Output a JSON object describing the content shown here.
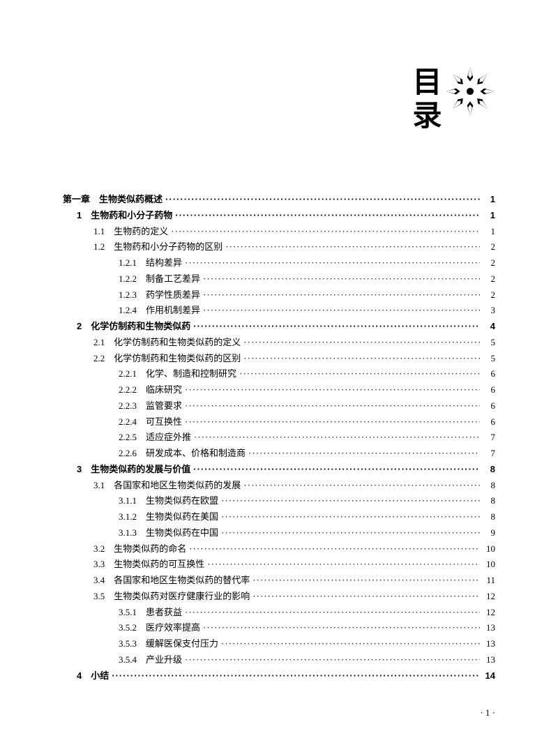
{
  "header": {
    "title": "目录"
  },
  "toc": [
    {
      "indent": 0,
      "bold": true,
      "num": "第一章",
      "title": "生物类似药概述",
      "page": "1",
      "numGap": "　"
    },
    {
      "indent": 1,
      "bold": true,
      "num": "1",
      "title": "生物药和小分子药物",
      "page": "1",
      "numGap": "　"
    },
    {
      "indent": 2,
      "bold": false,
      "num": "1.1",
      "title": "生物药的定义",
      "page": "1",
      "numGap": "　"
    },
    {
      "indent": 2,
      "bold": false,
      "num": "1.2",
      "title": "生物药和小分子药物的区别",
      "page": "2",
      "numGap": "　"
    },
    {
      "indent": 3,
      "bold": false,
      "num": "1.2.1",
      "title": "结构差异",
      "page": "2",
      "numGap": "　"
    },
    {
      "indent": 3,
      "bold": false,
      "num": "1.2.2",
      "title": "制备工艺差异",
      "page": "2",
      "numGap": "　"
    },
    {
      "indent": 3,
      "bold": false,
      "num": "1.2.3",
      "title": "药学性质差异",
      "page": "2",
      "numGap": "　"
    },
    {
      "indent": 3,
      "bold": false,
      "num": "1.2.4",
      "title": "作用机制差异",
      "page": "3",
      "numGap": "　"
    },
    {
      "indent": 1,
      "bold": true,
      "num": "2",
      "title": "化学仿制药和生物类似药",
      "page": "4",
      "numGap": "　"
    },
    {
      "indent": 2,
      "bold": false,
      "num": "2.1",
      "title": "化学仿制药和生物类似药的定义",
      "page": "5",
      "numGap": "　"
    },
    {
      "indent": 2,
      "bold": false,
      "num": "2.2",
      "title": "化学仿制药和生物类似药的区别",
      "page": "5",
      "numGap": "　"
    },
    {
      "indent": 3,
      "bold": false,
      "num": "2.2.1",
      "title": "化学、制造和控制研究",
      "page": "6",
      "numGap": "　"
    },
    {
      "indent": 3,
      "bold": false,
      "num": "2.2.2",
      "title": "临床研究",
      "page": "6",
      "numGap": "　"
    },
    {
      "indent": 3,
      "bold": false,
      "num": "2.2.3",
      "title": "监管要求",
      "page": "6",
      "numGap": "　"
    },
    {
      "indent": 3,
      "bold": false,
      "num": "2.2.4",
      "title": "可互换性",
      "page": "6",
      "numGap": "　"
    },
    {
      "indent": 3,
      "bold": false,
      "num": "2.2.5",
      "title": "适应症外推",
      "page": "7",
      "numGap": "　"
    },
    {
      "indent": 3,
      "bold": false,
      "num": "2.2.6",
      "title": "研发成本、价格和制造商",
      "page": "7",
      "numGap": "　"
    },
    {
      "indent": 1,
      "bold": true,
      "num": "3",
      "title": "生物类似药的发展与价值",
      "page": "8",
      "numGap": "　"
    },
    {
      "indent": 2,
      "bold": false,
      "num": "3.1",
      "title": "各国家和地区生物类似药的发展",
      "page": "8",
      "numGap": "　"
    },
    {
      "indent": 3,
      "bold": false,
      "num": "3.1.1",
      "title": "生物类似药在欧盟",
      "page": "8",
      "numGap": "　"
    },
    {
      "indent": 3,
      "bold": false,
      "num": "3.1.2",
      "title": "生物类似药在美国",
      "page": "8",
      "numGap": "　"
    },
    {
      "indent": 3,
      "bold": false,
      "num": "3.1.3",
      "title": "生物类似药在中国",
      "page": "9",
      "numGap": "　"
    },
    {
      "indent": 2,
      "bold": false,
      "num": "3.2",
      "title": "生物类似药的命名",
      "page": "10",
      "numGap": "　"
    },
    {
      "indent": 2,
      "bold": false,
      "num": "3.3",
      "title": "生物类似药的可互换性",
      "page": "10",
      "numGap": "　"
    },
    {
      "indent": 2,
      "bold": false,
      "num": "3.4",
      "title": "各国家和地区生物类似药的替代率",
      "page": "11",
      "numGap": "　"
    },
    {
      "indent": 2,
      "bold": false,
      "num": "3.5",
      "title": "生物类似药对医疗健康行业的影响",
      "page": "12",
      "numGap": "　"
    },
    {
      "indent": 3,
      "bold": false,
      "num": "3.5.1",
      "title": "患者获益",
      "page": "12",
      "numGap": "　"
    },
    {
      "indent": 3,
      "bold": false,
      "num": "3.5.2",
      "title": "医疗效率提高",
      "page": "13",
      "numGap": "　"
    },
    {
      "indent": 3,
      "bold": false,
      "num": "3.5.3",
      "title": "缓解医保支付压力",
      "page": "13",
      "numGap": "　"
    },
    {
      "indent": 3,
      "bold": false,
      "num": "3.5.4",
      "title": "产业升级",
      "page": "13",
      "numGap": "　"
    },
    {
      "indent": 1,
      "bold": true,
      "num": "4",
      "title": "小结",
      "page": "14",
      "numGap": "　"
    }
  ],
  "footer": {
    "pageNum": "· 1 ·"
  }
}
